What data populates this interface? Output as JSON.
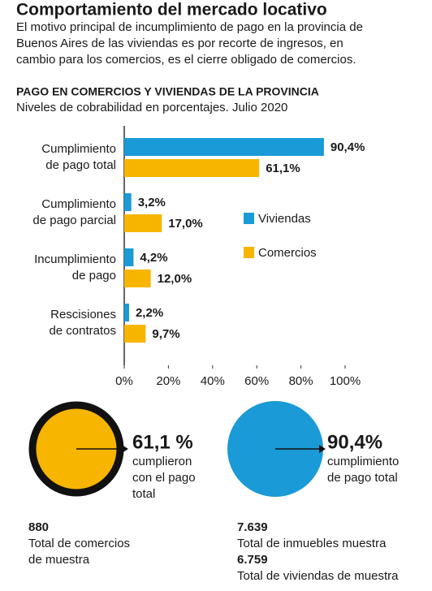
{
  "title": "Comportamiento del mercado locativo",
  "description": "El motivo principal de incumplimiento de pago en la provincia de\nBuenos Aires de las viviendas es por recorte de ingresos, en\ncambio para los comercios, es el cierre obligado de comercios.",
  "chart_data": {
    "type": "hbar",
    "title": "PAGO EN COMERCIOS Y VIVIENDAS DE LA PROVINCIA",
    "subtitle": "Niveles de cobrabilidad en porcentajes. Julio 2020",
    "categories": [
      "Cumplimiento\nde pago total",
      "Cumplimiento\nde pago parcial",
      "Incumplimiento\nde pago",
      "Rescisiones\nde contratos"
    ],
    "series": [
      {
        "name": "Viviendas",
        "color": "#1a9ad6",
        "values": [
          90.4,
          3.2,
          4.2,
          2.2
        ],
        "value_labels": [
          "90,4%",
          "3,2%",
          "4,2%",
          "2,2%"
        ]
      },
      {
        "name": "Comercios",
        "color": "#f7b500",
        "values": [
          61.1,
          17.0,
          12.0,
          9.7
        ],
        "value_labels": [
          "61,1%",
          "17,0%",
          "12,0%",
          "9,7%"
        ]
      }
    ],
    "xlim": [
      0,
      100
    ],
    "xticks": [
      {
        "value": 0,
        "label": "0%"
      },
      {
        "value": 20,
        "label": "20%"
      },
      {
        "value": 40,
        "label": "40%"
      },
      {
        "value": 60,
        "label": "60%"
      },
      {
        "value": 80,
        "label": "80%"
      },
      {
        "value": 100,
        "label": "100%"
      }
    ],
    "legend": "center"
  },
  "summary": {
    "comercios": {
      "value": "61,1 %",
      "text": "cumplieron\ncon el pago\ntotal"
    },
    "viviendas": {
      "value": "90,4%",
      "text": "cumplimiento\nde pago total"
    }
  },
  "sample": {
    "comercios_total": "880",
    "comercios_text": "Total de comercios\nde muestra",
    "inmuebles_total": "7.639",
    "inmuebles_text": "Total de inmuebles muestra",
    "viviendas_total": "6.759",
    "viviendas_text": "Total de viviendas de muestra"
  }
}
